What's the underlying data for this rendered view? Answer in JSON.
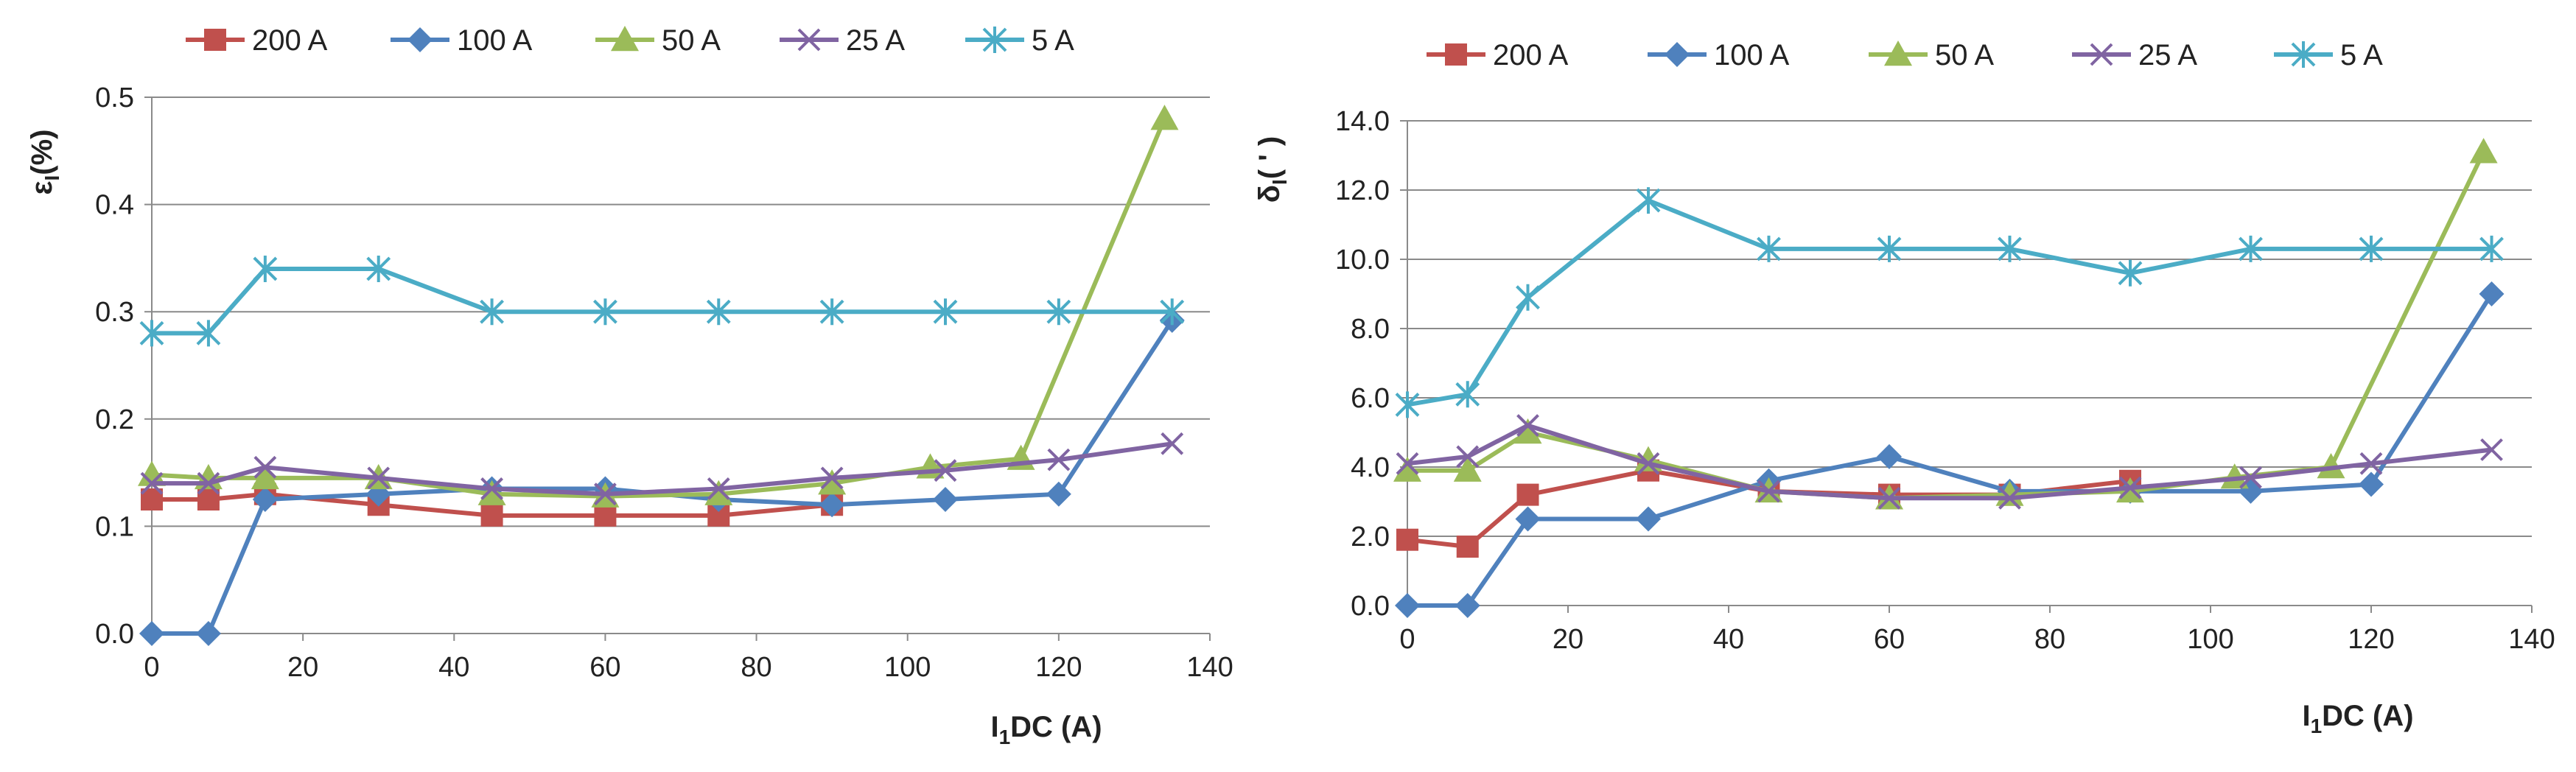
{
  "chart_data": [
    {
      "type": "line",
      "title": "",
      "xlabel": "I1DC (A)",
      "xlabel_parts": {
        "main": "I",
        "sub": "1",
        "rest": "DC (A)"
      },
      "ylabel": "εI(%)",
      "ylabel_parts": {
        "main": "ε",
        "sub": "I",
        "rest": "(%)"
      },
      "xlim": [
        0,
        140
      ],
      "ylim": [
        0,
        0.5
      ],
      "xticks": [
        0,
        20,
        40,
        60,
        80,
        100,
        120,
        140
      ],
      "yticks": [
        0.0,
        0.1,
        0.2,
        0.3,
        0.4,
        0.5
      ],
      "xtick_labels": [
        "0",
        "20",
        "40",
        "60",
        "80",
        "100",
        "120",
        "140"
      ],
      "ytick_labels": [
        "0.0",
        "0.1",
        "0.2",
        "0.3",
        "0.4",
        "0.5"
      ],
      "grid": "horizontal",
      "legend_position": "top",
      "series": [
        {
          "name": "200 A",
          "color": "#c0504d",
          "marker": "square",
          "x": [
            0,
            7.5,
            15,
            30,
            45,
            60,
            75,
            90
          ],
          "y": [
            0.125,
            0.125,
            0.13,
            0.12,
            0.11,
            0.11,
            0.11,
            0.12
          ]
        },
        {
          "name": "100 A",
          "color": "#4f81bd",
          "marker": "diamond",
          "x": [
            0,
            7.5,
            15,
            30,
            45,
            60,
            75,
            90,
            105,
            120,
            135
          ],
          "y": [
            0.0,
            0.0,
            0.125,
            0.13,
            0.135,
            0.135,
            0.125,
            0.12,
            0.125,
            0.13,
            0.292
          ]
        },
        {
          "name": "50 A",
          "color": "#9bbb59",
          "marker": "triangle",
          "x": [
            0,
            7.5,
            15,
            30,
            45,
            60,
            75,
            90,
            103,
            115,
            134
          ],
          "y": [
            0.148,
            0.145,
            0.145,
            0.145,
            0.13,
            0.128,
            0.13,
            0.14,
            0.155,
            0.163,
            0.48
          ]
        },
        {
          "name": "25 A",
          "color": "#8064a2",
          "marker": "x",
          "x": [
            0,
            7.5,
            15,
            30,
            45,
            60,
            75,
            90,
            105,
            120,
            135
          ],
          "y": [
            0.14,
            0.14,
            0.155,
            0.145,
            0.135,
            0.13,
            0.135,
            0.145,
            0.152,
            0.162,
            0.177
          ]
        },
        {
          "name": "5 A",
          "color": "#4bacc6",
          "marker": "asterisk",
          "x": [
            0,
            7.5,
            15,
            30,
            45,
            60,
            75,
            90,
            105,
            120,
            135
          ],
          "y": [
            0.28,
            0.28,
            0.34,
            0.34,
            0.3,
            0.3,
            0.3,
            0.3,
            0.3,
            0.3,
            0.3
          ]
        }
      ]
    },
    {
      "type": "line",
      "title": "",
      "xlabel": "I1DC (A)",
      "xlabel_parts": {
        "main": "I",
        "sub": "1",
        "rest": "DC (A)"
      },
      "ylabel": "δI(')",
      "ylabel_parts": {
        "main": "δ",
        "sub": "I",
        "rest": "( ' )"
      },
      "xlim": [
        0,
        140
      ],
      "ylim": [
        0,
        14
      ],
      "xticks": [
        0,
        20,
        40,
        60,
        80,
        100,
        120,
        140
      ],
      "yticks": [
        0,
        2,
        4,
        6,
        8,
        10,
        12,
        14
      ],
      "xtick_labels": [
        "0",
        "20",
        "40",
        "60",
        "80",
        "100",
        "120",
        "140"
      ],
      "ytick_labels": [
        "0.0",
        "2.0",
        "4.0",
        "6.0",
        "8.0",
        "10.0",
        "12.0",
        "14.0"
      ],
      "grid": "horizontal",
      "legend_position": "top",
      "series": [
        {
          "name": "200 A",
          "color": "#c0504d",
          "marker": "square",
          "x": [
            0,
            7.5,
            15,
            30,
            45,
            60,
            75,
            90
          ],
          "y": [
            1.9,
            1.7,
            3.2,
            3.9,
            3.3,
            3.2,
            3.2,
            3.6
          ]
        },
        {
          "name": "100 A",
          "color": "#4f81bd",
          "marker": "diamond",
          "x": [
            0,
            7.5,
            15,
            30,
            45,
            60,
            75,
            90,
            105,
            120,
            135
          ],
          "y": [
            0.0,
            0.0,
            2.5,
            2.5,
            3.6,
            4.3,
            3.3,
            3.3,
            3.3,
            3.5,
            9.0
          ]
        },
        {
          "name": "50 A",
          "color": "#9bbb59",
          "marker": "triangle",
          "x": [
            0,
            7.5,
            15,
            30,
            45,
            60,
            75,
            90,
            103,
            115,
            134
          ],
          "y": [
            3.9,
            3.9,
            5.0,
            4.2,
            3.3,
            3.1,
            3.2,
            3.3,
            3.7,
            4.0,
            13.1
          ]
        },
        {
          "name": "25 A",
          "color": "#8064a2",
          "marker": "x",
          "x": [
            0,
            7.5,
            15,
            30,
            45,
            60,
            75,
            90,
            105,
            120,
            135
          ],
          "y": [
            4.1,
            4.3,
            5.2,
            4.1,
            3.3,
            3.1,
            3.1,
            3.4,
            3.7,
            4.1,
            4.5
          ]
        },
        {
          "name": "5 A",
          "color": "#4bacc6",
          "marker": "asterisk",
          "x": [
            0,
            7.5,
            15,
            30,
            45,
            60,
            75,
            90,
            105,
            120,
            135
          ],
          "y": [
            5.8,
            6.1,
            8.9,
            11.7,
            10.3,
            10.3,
            10.3,
            9.6,
            10.3,
            10.3,
            10.3
          ]
        }
      ]
    }
  ]
}
